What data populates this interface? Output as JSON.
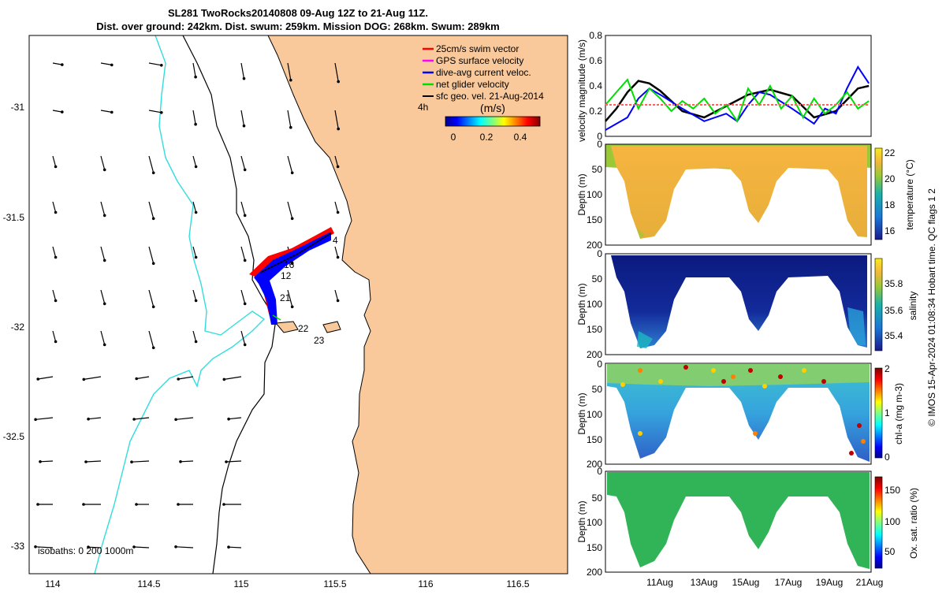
{
  "title": {
    "line1": "SL281 TwoRocks20140808 09-Aug 12Z to 21-Aug 11Z.",
    "line2": "Dist. over ground: 242km. Dist. swum: 259km. Mission DOG: 268km. Swum: 289km"
  },
  "map": {
    "x_ticks": [
      "114",
      "114.5",
      "115",
      "115.5",
      "116",
      "116.5"
    ],
    "y_ticks": [
      "-31",
      "-31.5",
      "-32",
      "-32.5",
      "-33"
    ],
    "legend": [
      {
        "label": "25cm/s swim vector",
        "color": "#ff0000"
      },
      {
        "label": "GPS surface velocity",
        "color": "#ff00ff"
      },
      {
        "label": "dive-avg current veloc.",
        "color": "#0000ff"
      },
      {
        "label": "net glider velocity",
        "color": "#00dd00"
      },
      {
        "label": "sfc geo. vel. 21-Aug-2014",
        "color": "#000000"
      }
    ],
    "time_label": "4h",
    "colorbar_title": "(m/s)",
    "colorbar_ticks": [
      "0",
      "0.2",
      "0.4"
    ],
    "isobaths_label": "isobaths: 0   200  1000m",
    "track_labels": [
      "4",
      "12",
      "16",
      "21",
      "22",
      "23"
    ],
    "colors": {
      "land": "#f9c99b",
      "sea": "#ffffff",
      "coast": "#000000",
      "isobath_1000": "#33dddd"
    }
  },
  "chart_data": [
    {
      "type": "line",
      "ylabel": "velocity magnitude (m/s)",
      "ylim": [
        0,
        0.8
      ],
      "y_ticks": [
        "0",
        "0.2",
        "0.4",
        "0.6",
        "0.8"
      ],
      "series": [
        {
          "color": "#000000",
          "x": [
            9.5,
            10,
            10.5,
            11,
            11.5,
            12,
            13,
            14,
            15,
            16,
            17,
            18,
            19,
            20,
            21,
            21.5
          ],
          "values": [
            0.12,
            0.22,
            0.35,
            0.44,
            0.42,
            0.36,
            0.2,
            0.15,
            0.24,
            0.33,
            0.37,
            0.32,
            0.15,
            0.2,
            0.38,
            0.4
          ]
        },
        {
          "color": "#0000ff",
          "x": [
            9.5,
            10,
            10.5,
            11,
            11.5,
            12,
            13,
            14,
            15,
            15.5,
            16,
            16.5,
            17,
            18,
            19,
            19.5,
            20,
            20.5,
            21,
            21.5
          ],
          "values": [
            0.05,
            0.1,
            0.15,
            0.3,
            0.38,
            0.33,
            0.22,
            0.12,
            0.18,
            0.12,
            0.25,
            0.35,
            0.33,
            0.22,
            0.1,
            0.22,
            0.18,
            0.38,
            0.55,
            0.42
          ]
        },
        {
          "color": "#00dd00",
          "x": [
            9.5,
            10,
            10.5,
            11,
            11.5,
            12,
            12.5,
            13,
            13.5,
            14,
            14.5,
            15,
            15.5,
            16,
            16.5,
            17,
            17.5,
            18,
            18.5,
            19,
            19.5,
            20,
            20.5,
            21,
            21.5
          ],
          "values": [
            0.25,
            0.35,
            0.45,
            0.22,
            0.38,
            0.3,
            0.2,
            0.28,
            0.22,
            0.3,
            0.18,
            0.25,
            0.12,
            0.38,
            0.25,
            0.4,
            0.22,
            0.32,
            0.15,
            0.3,
            0.18,
            0.25,
            0.35,
            0.22,
            0.28
          ]
        },
        {
          "color": "#ff6060",
          "x": [
            9.5,
            21.5
          ],
          "values": [
            0.25,
            0.25
          ]
        }
      ]
    },
    {
      "type": "heatmap",
      "ylabel": "Depth (m)",
      "ylim": [
        0,
        200
      ],
      "y_ticks": [
        "0",
        "50",
        "100",
        "150",
        "200"
      ],
      "colorbar_label": "temperature (°C)",
      "colorbar_ticks": [
        "16",
        "18",
        "20",
        "22"
      ]
    },
    {
      "type": "heatmap",
      "ylabel": "Depth (m)",
      "ylim": [
        0,
        200
      ],
      "y_ticks": [
        "0",
        "50",
        "100",
        "150",
        "200"
      ],
      "colorbar_label": "salinity",
      "colorbar_ticks": [
        "35.4",
        "35.6",
        "35.8"
      ]
    },
    {
      "type": "heatmap",
      "ylabel": "Depth (m)",
      "ylim": [
        0,
        200
      ],
      "y_ticks": [
        "0",
        "50",
        "100",
        "150",
        "200"
      ],
      "colorbar_label": "chl-a (mg m-3)",
      "colorbar_ticks": [
        "0",
        "1",
        "2"
      ]
    },
    {
      "type": "heatmap",
      "ylabel": "Depth (m)",
      "ylim": [
        0,
        200
      ],
      "y_ticks": [
        "0",
        "50",
        "100",
        "150",
        "200"
      ],
      "colorbar_label": "Ox. sat. ratio (%)",
      "colorbar_ticks": [
        "50",
        "100",
        "150"
      ],
      "x_ticks": [
        "11Aug",
        "13Aug",
        "15Aug",
        "17Aug",
        "19Aug",
        "21Aug"
      ]
    }
  ],
  "footer": "© IMOS 15-Apr-2024 01:08:34 Hobart time. QC flags 1  2"
}
